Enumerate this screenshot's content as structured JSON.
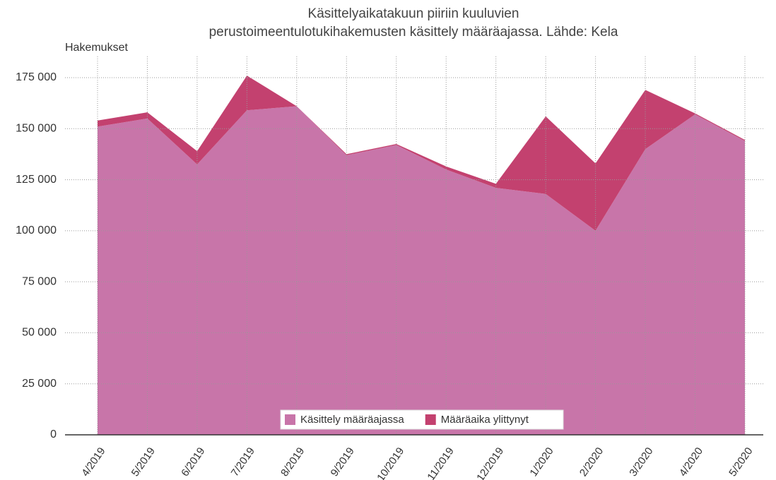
{
  "chart_data": {
    "type": "stacked-area",
    "title": [
      "Käsittelyaikatakuun piiriin kuuluvien",
      "perustoimeentulotukihakemusten käsittely määräajassa. Lähde: Kela"
    ],
    "y_label": "Hakemukset",
    "categories": [
      "4/2019",
      "5/2019",
      "6/2019",
      "7/2019",
      "8/2019",
      "9/2019",
      "10/2019",
      "11/2019",
      "12/2019",
      "1/2020",
      "2/2020",
      "3/2020",
      "4/2020",
      "5/2020"
    ],
    "series": [
      {
        "name": "Käsittely määräajassa",
        "color": "#c875a9",
        "values": [
          151000,
          155000,
          132500,
          159000,
          161000,
          137000,
          142000,
          130000,
          121000,
          118000,
          100000,
          140000,
          157000,
          144000
        ]
      },
      {
        "name": "Määräaika ylittynyt",
        "color": "#c3416f",
        "values": [
          3000,
          3000,
          6500,
          17000,
          0,
          500,
          500,
          1500,
          2000,
          38000,
          33000,
          29000,
          500,
          500
        ]
      }
    ],
    "ylim": [
      0,
      175000
    ],
    "yticks": [
      0,
      {
        "value": 25000,
        "label": "25 000"
      },
      {
        "value": 50000,
        "label": "50 000"
      },
      {
        "value": 75000,
        "label": "75 000"
      },
      {
        "value": 100000,
        "label": "100 000"
      },
      {
        "value": 125000,
        "label": "125 000"
      },
      {
        "value": 150000,
        "label": "150 000"
      },
      {
        "value": 175000,
        "label": "175 000"
      }
    ],
    "grid": true,
    "legend": "bottom"
  }
}
